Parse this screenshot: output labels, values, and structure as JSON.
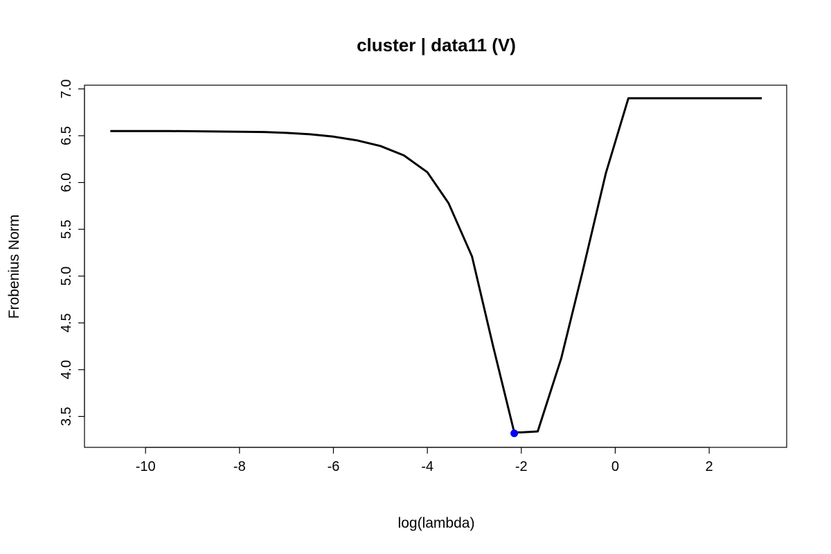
{
  "chart_data": {
    "type": "line",
    "title": "cluster | data11 (V)",
    "xlabel": "log(lambda)",
    "ylabel": "Frobenius Norm",
    "xlim": [
      -11.3,
      3.65
    ],
    "ylim": [
      3.17,
      7.04
    ],
    "xticks": [
      -10,
      -8,
      -6,
      -4,
      -2,
      0,
      2
    ],
    "xtick_labels": [
      "-10",
      "-8",
      "-6",
      "-4",
      "-2",
      "0",
      "2"
    ],
    "yticks": [
      3.5,
      4.0,
      4.5,
      5.0,
      5.5,
      6.0,
      6.5,
      7.0
    ],
    "ytick_labels": [
      "3.5",
      "4.0",
      "4.5",
      "5.0",
      "5.5",
      "6.0",
      "6.5",
      "7.0"
    ],
    "grid": false,
    "series": [
      {
        "color": "#000000",
        "x": [
          -10.75,
          -9.5,
          -8.5,
          -7.5,
          -7.0,
          -6.5,
          -6.0,
          -5.5,
          -5.0,
          -4.5,
          -4.0,
          -3.55,
          -3.05,
          -2.6,
          -2.15,
          -2.0,
          -1.65,
          -1.15,
          -0.7,
          -0.2,
          0.28,
          3.12
        ],
        "y": [
          6.55,
          6.55,
          6.545,
          6.54,
          6.53,
          6.515,
          6.49,
          6.45,
          6.39,
          6.29,
          6.11,
          5.78,
          5.21,
          4.25,
          3.33,
          3.33,
          3.34,
          4.12,
          5.04,
          6.1,
          6.9,
          6.9
        ]
      }
    ],
    "highlight_point": {
      "x": -2.15,
      "y": 3.32,
      "color": "#0000ff"
    }
  }
}
